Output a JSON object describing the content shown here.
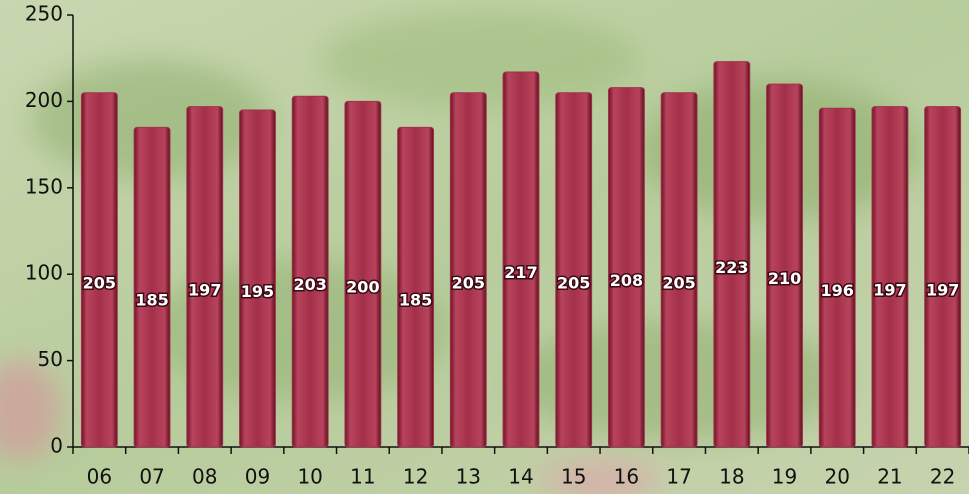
{
  "chart_data": {
    "type": "bar",
    "categories": [
      "06",
      "07",
      "08",
      "09",
      "10",
      "11",
      "12",
      "13",
      "14",
      "15",
      "16",
      "17",
      "18",
      "19",
      "20",
      "21",
      "22"
    ],
    "values": [
      205,
      185,
      197,
      195,
      203,
      200,
      185,
      205,
      217,
      205,
      208,
      205,
      223,
      210,
      196,
      197,
      197
    ],
    "color": "#a3304a",
    "ylim": [
      0,
      250
    ],
    "yticks": [
      0,
      50,
      100,
      150,
      200,
      250
    ],
    "grid": false
  }
}
